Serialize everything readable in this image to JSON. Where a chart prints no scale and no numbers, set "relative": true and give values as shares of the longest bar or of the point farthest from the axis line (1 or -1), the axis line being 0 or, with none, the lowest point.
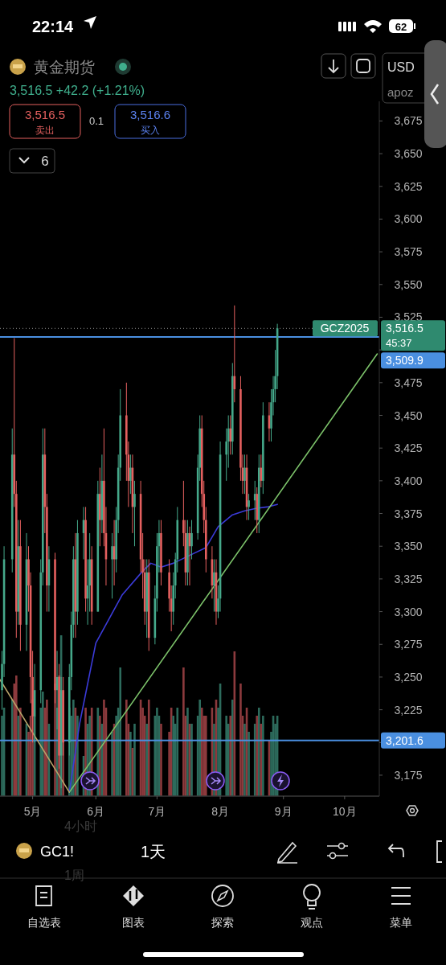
{
  "chart_data": [
    {
      "type": "candlestick",
      "title": "黄金期货",
      "subtitle": "3,516.5 +42.2 (+1.21%)",
      "x": [
        "2025-04-16",
        "2025-04-17",
        "2025-04-21",
        "2025-04-22",
        "2025-04-23",
        "2025-04-24",
        "2025-04-25",
        "2025-04-28",
        "2025-04-29",
        "2025-04-30",
        "2025-05-01",
        "2025-05-02",
        "2025-05-05",
        "2025-05-06",
        "2025-05-07",
        "2025-05-08",
        "2025-05-09",
        "2025-05-12",
        "2025-05-13",
        "2025-05-14",
        "2025-05-15",
        "2025-05-16",
        "2025-05-19",
        "2025-05-20",
        "2025-05-21",
        "2025-05-22",
        "2025-05-23",
        "2025-05-26",
        "2025-05-27",
        "2025-05-28",
        "2025-05-29",
        "2025-05-30",
        "2025-06-02",
        "2025-06-03",
        "2025-06-04",
        "2025-06-05",
        "2025-06-06",
        "2025-06-09",
        "2025-06-10",
        "2025-06-11",
        "2025-06-12",
        "2025-06-13",
        "2025-06-16",
        "2025-06-17",
        "2025-06-18",
        "2025-06-19",
        "2025-06-20",
        "2025-06-23",
        "2025-06-24",
        "2025-06-25",
        "2025-06-26",
        "2025-06-27",
        "2025-06-30",
        "2025-07-01",
        "2025-07-02",
        "2025-07-03",
        "2025-07-07",
        "2025-07-08",
        "2025-07-09",
        "2025-07-10",
        "2025-07-11",
        "2025-07-14",
        "2025-07-15",
        "2025-07-16",
        "2025-07-17",
        "2025-07-18",
        "2025-07-21",
        "2025-07-22",
        "2025-07-23",
        "2025-07-24",
        "2025-07-25",
        "2025-07-28",
        "2025-07-29",
        "2025-07-30",
        "2025-07-31",
        "2025-08-01",
        "2025-08-04",
        "2025-08-05",
        "2025-08-06",
        "2025-08-07",
        "2025-08-08",
        "2025-08-11",
        "2025-08-12",
        "2025-08-13",
        "2025-08-14",
        "2025-08-15",
        "2025-08-18",
        "2025-08-19",
        "2025-08-20",
        "2025-08-21",
        "2025-08-22",
        "2025-08-25",
        "2025-08-26",
        "2025-08-27",
        "2025-08-28",
        "2025-08-29"
      ],
      "ohlc": [
        [
          3240,
          3270,
          3225,
          3260
        ],
        [
          3260,
          3350,
          3250,
          3340
        ],
        [
          3340,
          3440,
          3330,
          3420
        ],
        [
          3420,
          3509,
          3380,
          3390
        ],
        [
          3390,
          3400,
          3280,
          3300
        ],
        [
          3300,
          3370,
          3290,
          3350
        ],
        [
          3350,
          3370,
          3270,
          3290
        ],
        [
          3290,
          3360,
          3270,
          3340
        ],
        [
          3340,
          3350,
          3300,
          3320
        ],
        [
          3320,
          3330,
          3230,
          3250
        ],
        [
          3250,
          3270,
          3200,
          3220
        ],
        [
          3220,
          3260,
          3200,
          3240
        ],
        [
          3240,
          3340,
          3230,
          3330
        ],
        [
          3330,
          3440,
          3320,
          3420
        ],
        [
          3420,
          3440,
          3360,
          3380
        ],
        [
          3380,
          3390,
          3300,
          3320
        ],
        [
          3320,
          3350,
          3300,
          3340
        ],
        [
          3340,
          3345,
          3230,
          3240
        ],
        [
          3240,
          3270,
          3210,
          3250
        ],
        [
          3250,
          3260,
          3180,
          3190
        ],
        [
          3190,
          3250,
          3165,
          3240
        ],
        [
          3240,
          3250,
          3190,
          3200
        ],
        [
          3200,
          3260,
          3190,
          3250
        ],
        [
          3250,
          3300,
          3240,
          3290
        ],
        [
          3290,
          3350,
          3280,
          3340
        ],
        [
          3340,
          3360,
          3280,
          3300
        ],
        [
          3300,
          3370,
          3290,
          3360
        ],
        [
          3360,
          3380,
          3340,
          3370
        ],
        [
          3370,
          3380,
          3300,
          3310
        ],
        [
          3310,
          3340,
          3290,
          3320
        ],
        [
          3320,
          3360,
          3300,
          3340
        ],
        [
          3340,
          3350,
          3290,
          3300
        ],
        [
          3300,
          3400,
          3300,
          3390
        ],
        [
          3390,
          3410,
          3350,
          3370
        ],
        [
          3370,
          3420,
          3360,
          3400
        ],
        [
          3400,
          3440,
          3350,
          3360
        ],
        [
          3360,
          3380,
          3320,
          3340
        ],
        [
          3340,
          3360,
          3310,
          3350
        ],
        [
          3350,
          3370,
          3320,
          3340
        ],
        [
          3340,
          3380,
          3330,
          3370
        ],
        [
          3370,
          3420,
          3360,
          3410
        ],
        [
          3410,
          3470,
          3400,
          3450
        ],
        [
          3450,
          3475,
          3400,
          3420
        ],
        [
          3420,
          3430,
          3380,
          3400
        ],
        [
          3400,
          3420,
          3390,
          3410
        ],
        [
          3410,
          3420,
          3360,
          3380
        ],
        [
          3380,
          3400,
          3350,
          3390
        ],
        [
          3390,
          3400,
          3330,
          3340
        ],
        [
          3340,
          3360,
          3310,
          3330
        ],
        [
          3330,
          3340,
          3290,
          3300
        ],
        [
          3300,
          3340,
          3280,
          3330
        ],
        [
          3330,
          3340,
          3270,
          3280
        ],
        [
          3280,
          3320,
          3275,
          3310
        ],
        [
          3310,
          3360,
          3300,
          3350
        ],
        [
          3350,
          3370,
          3330,
          3360
        ],
        [
          3360,
          3370,
          3320,
          3330
        ],
        [
          3330,
          3340,
          3300,
          3310
        ],
        [
          3310,
          3320,
          3285,
          3300
        ],
        [
          3300,
          3330,
          3290,
          3320
        ],
        [
          3320,
          3345,
          3310,
          3340
        ],
        [
          3340,
          3380,
          3330,
          3370
        ],
        [
          3370,
          3400,
          3350,
          3360
        ],
        [
          3360,
          3370,
          3320,
          3330
        ],
        [
          3330,
          3370,
          3320,
          3360
        ],
        [
          3360,
          3365,
          3320,
          3350
        ],
        [
          3350,
          3370,
          3340,
          3360
        ],
        [
          3360,
          3420,
          3355,
          3410
        ],
        [
          3410,
          3450,
          3400,
          3440
        ],
        [
          3440,
          3450,
          3380,
          3390
        ],
        [
          3390,
          3400,
          3360,
          3370
        ],
        [
          3370,
          3380,
          3330,
          3340
        ],
        [
          3340,
          3350,
          3310,
          3320
        ],
        [
          3320,
          3340,
          3300,
          3330
        ],
        [
          3330,
          3340,
          3290,
          3300
        ],
        [
          3300,
          3320,
          3295,
          3310
        ],
        [
          3310,
          3430,
          3300,
          3420
        ],
        [
          3420,
          3440,
          3400,
          3430
        ],
        [
          3430,
          3450,
          3410,
          3440
        ],
        [
          3440,
          3450,
          3420,
          3430
        ],
        [
          3430,
          3490,
          3420,
          3480
        ],
        [
          3480,
          3534,
          3460,
          3470
        ],
        [
          3470,
          3480,
          3400,
          3410
        ],
        [
          3410,
          3420,
          3390,
          3400
        ],
        [
          3400,
          3420,
          3390,
          3410
        ],
        [
          3410,
          3420,
          3370,
          3380
        ],
        [
          3380,
          3390,
          3370,
          3385
        ],
        [
          3385,
          3400,
          3370,
          3390
        ],
        [
          3390,
          3395,
          3360,
          3370
        ],
        [
          3370,
          3420,
          3360,
          3410
        ],
        [
          3410,
          3420,
          3395,
          3400
        ],
        [
          3400,
          3460,
          3390,
          3450
        ],
        [
          3450,
          3460,
          3430,
          3440
        ],
        [
          3440,
          3470,
          3430,
          3460
        ],
        [
          3460,
          3480,
          3450,
          3470
        ],
        [
          3470,
          3500,
          3460,
          3480
        ],
        [
          3480,
          3520,
          3470,
          3516.5
        ]
      ],
      "series": [
        {
          "type": "line",
          "color": "#3b3bd9",
          "x": [
            "2025-05-19",
            "2025-05-24",
            "2025-06-01",
            "2025-06-14",
            "2025-06-24",
            "2025-06-28",
            "2025-07-03",
            "2025-07-09",
            "2025-07-17",
            "2025-07-25",
            "2025-07-31",
            "2025-08-07",
            "2025-08-13",
            "2025-08-19",
            "2025-08-24",
            "2025-08-29"
          ],
          "values": [
            3162,
            3214,
            3276,
            3313,
            3331,
            3337,
            3334,
            3337,
            3343,
            3349,
            3365,
            3374,
            3377,
            3379,
            3380,
            3382
          ]
        },
        {
          "type": "line",
          "color": "#7cc26a",
          "x": [
            "2025-05-19",
            "2025-10-17"
          ],
          "values": [
            3162,
            3497
          ]
        },
        {
          "type": "line",
          "color": "#b8a36a",
          "x": [
            "2025-04-15",
            "2025-05-19"
          ],
          "values": [
            3248,
            3162
          ]
        }
      ],
      "xlim": [
        "2025-04-15",
        "2025-10-18"
      ],
      "xticks": [
        {
          "value": "2025-05-01",
          "label": "5月"
        },
        {
          "value": "2025-06-01",
          "label": "6月"
        },
        {
          "value": "2025-07-01",
          "label": "7月"
        },
        {
          "value": "2025-08-01",
          "label": "8月"
        },
        {
          "value": "2025-09-01",
          "label": "9月"
        },
        {
          "value": "2025-10-01",
          "label": "10月"
        }
      ],
      "ylim": [
        3159,
        3690
      ],
      "yticks": [
        {
          "value": 3175,
          "label": "3,175"
        },
        {
          "value": 3200,
          "label": null
        },
        {
          "value": 3225,
          "label": "3,225"
        },
        {
          "value": 3250,
          "label": "3,250"
        },
        {
          "value": 3275,
          "label": "3,275"
        },
        {
          "value": 3300,
          "label": "3,300"
        },
        {
          "value": 3325,
          "label": "3,325"
        },
        {
          "value": 3350,
          "label": "3,350"
        },
        {
          "value": 3375,
          "label": "3,375"
        },
        {
          "value": 3400,
          "label": "3,400"
        },
        {
          "value": 3425,
          "label": "3,425"
        },
        {
          "value": 3450,
          "label": "3,450"
        },
        {
          "value": 3475,
          "label": "3,475"
        },
        {
          "value": 3500,
          "label": null
        },
        {
          "value": 3525,
          "label": "3,525"
        },
        {
          "value": 3550,
          "label": "3,550"
        },
        {
          "value": 3575,
          "label": "3,575"
        },
        {
          "value": 3600,
          "label": "3,600"
        },
        {
          "value": 3625,
          "label": "3,625"
        },
        {
          "value": 3650,
          "label": "3,650"
        },
        {
          "value": 3675,
          "label": "3,675"
        }
      ],
      "ref_lines": [
        {
          "axis": "y",
          "value": 3516.5,
          "label": "3,516.5",
          "color": "#8a8a8a",
          "line_style": "dotted"
        },
        {
          "axis": "y",
          "value": 3509.9,
          "label": "3,509.9",
          "color": "#4a8fe0",
          "line_style": "solid"
        },
        {
          "axis": "y",
          "value": 3201.6,
          "label": "3,201.6",
          "color": "#4a8fe0",
          "line_style": "solid"
        }
      ],
      "annotations": [
        "22:14",
        "62",
        "3,516.5",
        "卖出",
        "0.1",
        "3,516.6",
        "买入",
        "6",
        "USD",
        "apoz",
        "GCZ2025",
        "45:37",
        "4小时",
        "1周",
        "GC1!",
        "1天",
        "自选表",
        "图表",
        "探索",
        "观点",
        "菜单"
      ]
    },
    {
      "type": "bar",
      "relative": true,
      "xlim": [
        "2025-04-15",
        "2025-10-18"
      ],
      "x": [
        "2025-04-16",
        "2025-04-17",
        "2025-04-21",
        "2025-04-22",
        "2025-04-23",
        "2025-04-24",
        "2025-04-25",
        "2025-04-28",
        "2025-04-29",
        "2025-04-30",
        "2025-05-01",
        "2025-05-02",
        "2025-05-05",
        "2025-05-06",
        "2025-05-07",
        "2025-05-08",
        "2025-05-09",
        "2025-05-12",
        "2025-05-13",
        "2025-05-14",
        "2025-05-15",
        "2025-05-16",
        "2025-05-19",
        "2025-05-20",
        "2025-05-21",
        "2025-05-22",
        "2025-05-23",
        "2025-05-26",
        "2025-05-27",
        "2025-05-28",
        "2025-05-29",
        "2025-05-30",
        "2025-06-02",
        "2025-06-03",
        "2025-06-04",
        "2025-06-05",
        "2025-06-06",
        "2025-06-09",
        "2025-06-10",
        "2025-06-11",
        "2025-06-12",
        "2025-06-13",
        "2025-06-16",
        "2025-06-17",
        "2025-06-18",
        "2025-06-19",
        "2025-06-20",
        "2025-06-23",
        "2025-06-24",
        "2025-06-25",
        "2025-06-26",
        "2025-06-27",
        "2025-06-30",
        "2025-07-01",
        "2025-07-02",
        "2025-07-03",
        "2025-07-07",
        "2025-07-08",
        "2025-07-09",
        "2025-07-10",
        "2025-07-11",
        "2025-07-14",
        "2025-07-15",
        "2025-07-16",
        "2025-07-17",
        "2025-07-18",
        "2025-07-21",
        "2025-07-22",
        "2025-07-23",
        "2025-07-24",
        "2025-07-25",
        "2025-07-28",
        "2025-07-29",
        "2025-07-30",
        "2025-07-31",
        "2025-08-01",
        "2025-08-04",
        "2025-08-05",
        "2025-08-06",
        "2025-08-07",
        "2025-08-08",
        "2025-08-11",
        "2025-08-12",
        "2025-08-13",
        "2025-08-14",
        "2025-08-15",
        "2025-08-18",
        "2025-08-19",
        "2025-08-20",
        "2025-08-21",
        "2025-08-22",
        "2025-08-25",
        "2025-08-26",
        "2025-08-27",
        "2025-08-28",
        "2025-08-29"
      ],
      "values": [
        0.5,
        0.55,
        0.6,
        0.7,
        0.75,
        0.5,
        0.55,
        0.45,
        0.4,
        0.5,
        0.6,
        0.5,
        0.55,
        0.65,
        0.55,
        0.6,
        0.45,
        0.7,
        0.55,
        0.75,
        1,
        0.65,
        0.55,
        0.5,
        0.6,
        0.55,
        0.5,
        0.25,
        0.55,
        0.45,
        0.5,
        0.55,
        0.55,
        0.5,
        0.45,
        0.6,
        0.55,
        0.4,
        0.45,
        0.5,
        0.55,
        0.8,
        0.6,
        0.45,
        0.4,
        0.3,
        0.45,
        0.6,
        0.55,
        0.5,
        0.45,
        0.6,
        0.5,
        0.55,
        0.5,
        0.45,
        0.4,
        0.55,
        0.5,
        0.45,
        0.55,
        0.8,
        0.5,
        0.55,
        0.45,
        0.45,
        0.5,
        0.6,
        0.55,
        0.5,
        0.5,
        0.55,
        0.45,
        0.6,
        0.55,
        0.7,
        0.5,
        0.45,
        0.5,
        0.6,
        0.9,
        0.7,
        0.5,
        0.45,
        0.55,
        0.4,
        0.45,
        0.5,
        0.55,
        0.45,
        0.5,
        0.35,
        0.4,
        0.5,
        0.45,
        0.5
      ],
      "colors": [
        "#2d6b5c",
        "#2d6b5c",
        "#2d6b5c",
        "#8c3a3d",
        "#8c3a3d",
        "#2d6b5c",
        "#8c3a3d",
        "#2d6b5c",
        "#8c3a3d",
        "#8c3a3d",
        "#8c3a3d",
        "#2d6b5c",
        "#2d6b5c",
        "#2d6b5c",
        "#8c3a3d",
        "#8c3a3d",
        "#2d6b5c",
        "#8c3a3d",
        "#2d6b5c",
        "#8c3a3d",
        "#2d6b5c",
        "#8c3a3d",
        "#2d6b5c",
        "#2d6b5c",
        "#2d6b5c",
        "#8c3a3d",
        "#2d6b5c",
        "#2d6b5c",
        "#8c3a3d",
        "#2d6b5c",
        "#2d6b5c",
        "#8c3a3d",
        "#2d6b5c",
        "#8c3a3d",
        "#2d6b5c",
        "#8c3a3d",
        "#8c3a3d",
        "#2d6b5c",
        "#8c3a3d",
        "#2d6b5c",
        "#2d6b5c",
        "#2d6b5c",
        "#8c3a3d",
        "#8c3a3d",
        "#2d6b5c",
        "#8c3a3d",
        "#2d6b5c",
        "#8c3a3d",
        "#8c3a3d",
        "#8c3a3d",
        "#2d6b5c",
        "#8c3a3d",
        "#2d6b5c",
        "#2d6b5c",
        "#2d6b5c",
        "#8c3a3d",
        "#8c3a3d",
        "#8c3a3d",
        "#2d6b5c",
        "#2d6b5c",
        "#2d6b5c",
        "#8c3a3d",
        "#8c3a3d",
        "#2d6b5c",
        "#8c3a3d",
        "#2d6b5c",
        "#2d6b5c",
        "#2d6b5c",
        "#8c3a3d",
        "#8c3a3d",
        "#8c3a3d",
        "#8c3a3d",
        "#2d6b5c",
        "#8c3a3d",
        "#2d6b5c",
        "#2d6b5c",
        "#2d6b5c",
        "#2d6b5c",
        "#8c3a3d",
        "#2d6b5c",
        "#8c3a3d",
        "#8c3a3d",
        "#8c3a3d",
        "#2d6b5c",
        "#8c3a3d",
        "#2d6b5c",
        "#2d6b5c",
        "#8c3a3d",
        "#2d6b5c",
        "#8c3a3d",
        "#2d6b5c",
        "#8c3a3d",
        "#2d6b5c",
        "#2d6b5c",
        "#2d6b5c",
        "#2d6b5c"
      ]
    }
  ]
}
